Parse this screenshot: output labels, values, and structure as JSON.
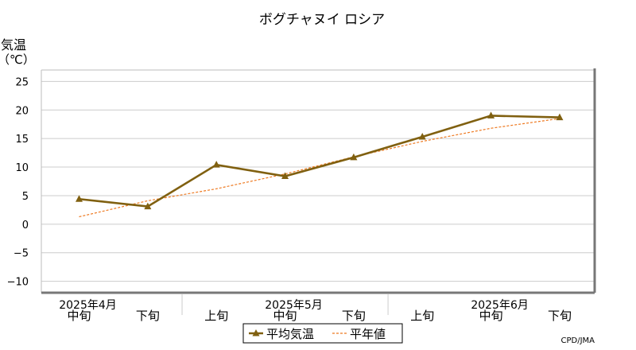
{
  "chart_data": {
    "type": "line",
    "title": "ボグチャヌイ ロシア",
    "ylabel_line1": "気温",
    "ylabel_line2": "（℃）",
    "ylim": [
      -12,
      27
    ],
    "yticks": [
      25,
      20,
      15,
      10,
      5,
      0,
      -5,
      -10
    ],
    "ytick_labels": [
      "25",
      "20",
      "15",
      "10",
      "5",
      "0",
      "−5",
      "−10"
    ],
    "grid": true,
    "categories": [
      "中旬",
      "下旬",
      "上旬",
      "中旬",
      "下旬",
      "上旬",
      "中旬",
      "下旬"
    ],
    "month_labels": [
      {
        "label": "2025年4月",
        "index": 0
      },
      {
        "label": "2025年5月",
        "index": 3
      },
      {
        "label": "2025年6月",
        "index": 6
      }
    ],
    "series": [
      {
        "name": "平均気温",
        "color": "#806010",
        "style": "solid",
        "marker": "triangle",
        "values": [
          4.4,
          3.1,
          10.4,
          8.4,
          11.7,
          15.3,
          19.0,
          18.7
        ]
      },
      {
        "name": "平年値",
        "color": "#ee7a22",
        "style": "dashed",
        "values": [
          1.3,
          4.1,
          6.2,
          8.8,
          11.8,
          14.5,
          16.8,
          18.5
        ]
      }
    ],
    "legend": {
      "placement": "bottom-center"
    },
    "credit": "CPD/JMA"
  }
}
